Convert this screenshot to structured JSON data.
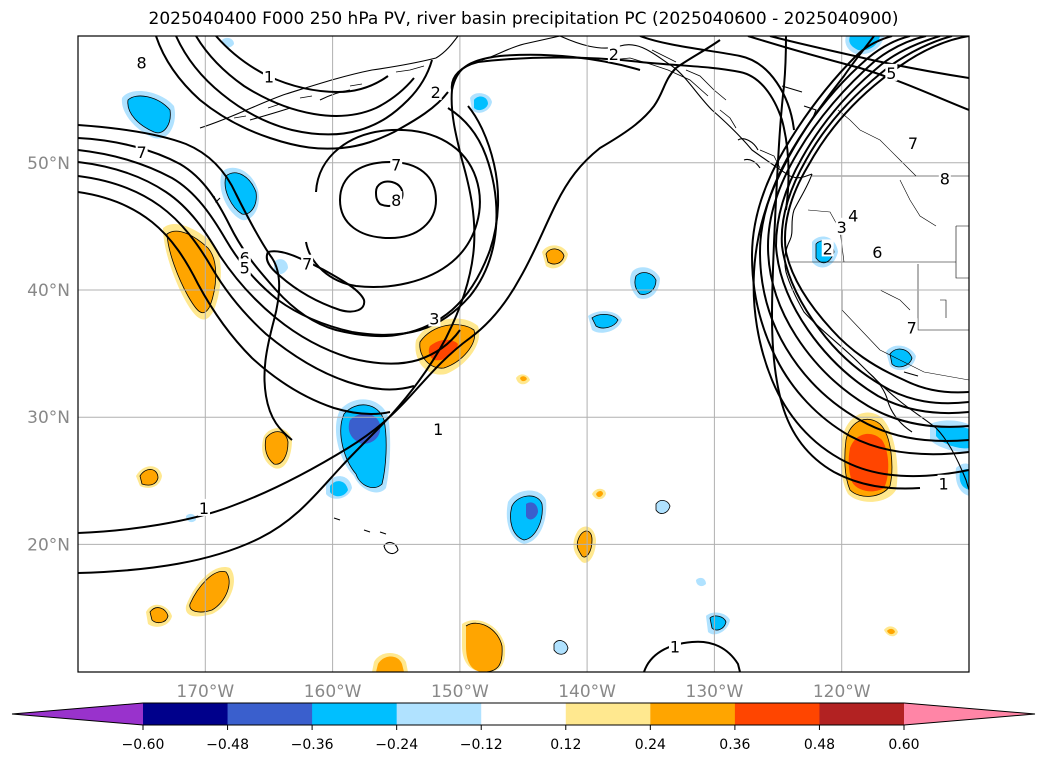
{
  "title": "2025040400 F000 250 hPa PV, river basin precipitation PC (2025040600 - 2025040900)",
  "map": {
    "lon_range": [
      -180,
      -110
    ],
    "lat_range": [
      10,
      60
    ],
    "lat_labels": [
      {
        "lat": 50,
        "text": "50°N"
      },
      {
        "lat": 40,
        "text": "40°N"
      },
      {
        "lat": 30,
        "text": "30°N"
      },
      {
        "lat": 20,
        "text": "20°N"
      }
    ],
    "lon_labels": [
      {
        "lon": -170,
        "text": "170°W"
      },
      {
        "lon": -160,
        "text": "160°W"
      },
      {
        "lon": -150,
        "text": "150°W"
      },
      {
        "lon": -140,
        "text": "140°W"
      },
      {
        "lon": -130,
        "text": "130°W"
      },
      {
        "lon": -120,
        "text": "120°W"
      }
    ],
    "grid": true,
    "contour_field": "250 hPa PV",
    "shaded_field": "river basin precipitation PC",
    "contour_labels": [
      {
        "text": "8",
        "lon": -175.0,
        "lat": 57.9
      },
      {
        "text": "1",
        "lon": -165.0,
        "lat": 56.8
      },
      {
        "text": "7",
        "lon": -175.0,
        "lat": 50.9
      },
      {
        "text": "7",
        "lon": -155.0,
        "lat": 49.9
      },
      {
        "text": "8",
        "lon": -155.0,
        "lat": 47.1
      },
      {
        "text": "6",
        "lon": -166.9,
        "lat": 42.6
      },
      {
        "text": "5",
        "lon": -166.9,
        "lat": 41.8
      },
      {
        "text": "7",
        "lon": -162.0,
        "lat": 42.1
      },
      {
        "text": "3",
        "lon": -152.0,
        "lat": 37.8
      },
      {
        "text": "1",
        "lon": -151.7,
        "lat": 29.1
      },
      {
        "text": "2",
        "lon": -151.9,
        "lat": 55.6
      },
      {
        "text": "2",
        "lon": -137.9,
        "lat": 58.6
      },
      {
        "text": "5",
        "lon": -116.1,
        "lat": 57.1
      },
      {
        "text": "7",
        "lon": -114.4,
        "lat": 51.6
      },
      {
        "text": "8",
        "lon": -111.9,
        "lat": 48.8
      },
      {
        "text": "2",
        "lon": -121.1,
        "lat": 43.3
      },
      {
        "text": "3",
        "lon": -120.0,
        "lat": 45.0
      },
      {
        "text": "4",
        "lon": -119.1,
        "lat": 45.9
      },
      {
        "text": "6",
        "lon": -117.2,
        "lat": 43.0
      },
      {
        "text": "7",
        "lon": -114.5,
        "lat": 37.1
      },
      {
        "text": "1",
        "lon": -112.0,
        "lat": 24.8
      },
      {
        "text": "1",
        "lon": -170.1,
        "lat": 22.9
      },
      {
        "text": "1",
        "lon": -133.1,
        "lat": 12.0
      }
    ]
  },
  "colorbar": {
    "levels": [
      -0.6,
      -0.48,
      -0.36,
      -0.24,
      -0.12,
      0.12,
      0.24,
      0.36,
      0.48,
      0.6
    ],
    "tick_labels": [
      "−0.60",
      "−0.48",
      "−0.36",
      "−0.24",
      "−0.12",
      "0.12",
      "0.24",
      "0.36",
      "0.48",
      "0.60"
    ],
    "colors": [
      "#9932cc",
      "#00008b",
      "#3a5fcd",
      "#00bfff",
      "#b0e2ff",
      "#ffffff",
      "#ffe88f",
      "#ffa500",
      "#ff4500",
      "#b22222",
      "#ff85a6"
    ],
    "extend": "both"
  }
}
